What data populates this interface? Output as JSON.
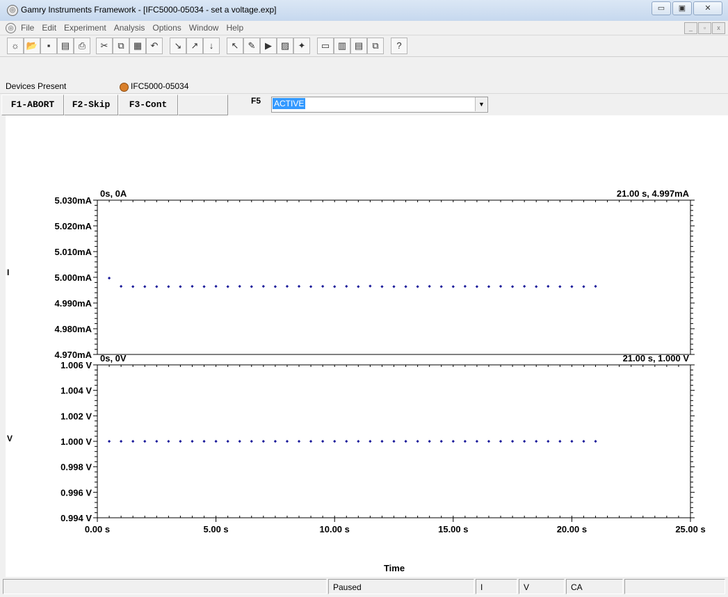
{
  "window": {
    "title": "Gamry Instruments Framework - [IFC5000-05034 - set a voltage.exp]",
    "app_icon": "gamry-logo-icon",
    "controls": [
      "minimize-icon",
      "maximize-icon",
      "close-icon"
    ]
  },
  "menu": {
    "items": [
      "File",
      "Edit",
      "Experiment",
      "Analysis",
      "Options",
      "Window",
      "Help"
    ]
  },
  "toolbar": {
    "icons": [
      "new-icon",
      "open-icon",
      "save-icon",
      "save-all-icon",
      "print-icon",
      "cut-icon",
      "copy-icon",
      "paste-icon",
      "undo-icon",
      "pointer-icon",
      "pointer-up-icon",
      "pointer-down-icon",
      "cursor-icon",
      "pen-icon",
      "run-icon",
      "chart-icon",
      "wand-icon",
      "stack-windows-icon",
      "tile-vertical-icon",
      "tile-horizontal-icon",
      "cascade-icon",
      "help-icon"
    ]
  },
  "devices": {
    "label": "Devices Present",
    "device": "IFC5000-05034",
    "status_color": "#d97f2a"
  },
  "fkeys": {
    "f1": "F1-ABORT",
    "f2": "F2-Skip",
    "f3": "F3-Cont",
    "f5_label": "F5",
    "f5_value": "ACTIVE"
  },
  "chart_data": [
    {
      "type": "scatter",
      "ylabel": "I",
      "corner_left": "0s, 0A",
      "corner_right": "21.00 s, 4.997mA",
      "ytick_labels": [
        "5.030mA",
        "5.020mA",
        "5.010mA",
        "5.000mA",
        "4.990mA",
        "4.980mA",
        "4.970mA"
      ],
      "ylim": [
        4.97,
        5.03
      ],
      "yunit": "mA",
      "xlim": [
        0,
        25
      ],
      "x": [
        0.5,
        1.0,
        1.5,
        2.0,
        2.5,
        3.0,
        3.5,
        4.0,
        4.5,
        5.0,
        5.5,
        6.0,
        6.5,
        7.0,
        7.5,
        8.0,
        8.5,
        9.0,
        9.5,
        10.0,
        10.5,
        11.0,
        11.5,
        12.0,
        12.5,
        13.0,
        13.5,
        14.0,
        14.5,
        15.0,
        15.5,
        16.0,
        16.5,
        17.0,
        17.5,
        18.0,
        18.5,
        19.0,
        19.5,
        20.0,
        20.5,
        21.0
      ],
      "y": [
        4.9997,
        4.9965,
        4.9964,
        4.9964,
        4.9964,
        4.9964,
        4.9964,
        4.9965,
        4.9964,
        4.9965,
        4.9964,
        4.9965,
        4.9964,
        4.9965,
        4.9964,
        4.9965,
        4.9965,
        4.9964,
        4.9965,
        4.9964,
        4.9965,
        4.9964,
        4.9966,
        4.9964,
        4.9964,
        4.9964,
        4.9964,
        4.9965,
        4.9964,
        4.9964,
        4.9965,
        4.9964,
        4.9964,
        4.9965,
        4.9964,
        4.9965,
        4.9964,
        4.9965,
        4.9964,
        4.9964,
        4.9964,
        4.9965
      ],
      "marker_color": "#1a1a9a"
    },
    {
      "type": "scatter",
      "ylabel": "V",
      "corner_left": "0s, 0V",
      "corner_right": "21.00 s, 1.000 V",
      "ytick_labels": [
        "1.006 V",
        "1.004 V",
        "1.002 V",
        "1.000 V",
        "0.998 V",
        "0.996 V",
        "0.994 V"
      ],
      "ylim": [
        0.994,
        1.006
      ],
      "yunit": "V",
      "xlim": [
        0,
        25
      ],
      "x": [
        0.5,
        1.0,
        1.5,
        2.0,
        2.5,
        3.0,
        3.5,
        4.0,
        4.5,
        5.0,
        5.5,
        6.0,
        6.5,
        7.0,
        7.5,
        8.0,
        8.5,
        9.0,
        9.5,
        10.0,
        10.5,
        11.0,
        11.5,
        12.0,
        12.5,
        13.0,
        13.5,
        14.0,
        14.5,
        15.0,
        15.5,
        16.0,
        16.5,
        17.0,
        17.5,
        18.0,
        18.5,
        19.0,
        19.5,
        20.0,
        20.5,
        21.0
      ],
      "y": [
        1.0,
        1.0,
        1.0,
        1.0,
        1.0,
        1.0,
        1.0,
        1.0,
        1.0,
        1.0,
        1.0,
        1.0,
        1.0,
        1.0,
        1.0,
        1.0,
        1.0,
        1.0,
        1.0,
        1.0,
        1.0,
        1.0,
        1.0,
        1.0,
        1.0,
        1.0,
        1.0,
        1.0,
        1.0,
        1.0,
        1.0,
        1.0,
        1.0,
        1.0,
        1.0,
        1.0,
        1.0,
        1.0,
        1.0,
        1.0,
        1.0,
        1.0
      ],
      "xtick_labels": [
        "0.00 s",
        "5.00 s",
        "10.00 s",
        "15.00 s",
        "20.00 s",
        "25.00 s"
      ],
      "xlabel": "Time",
      "marker_color": "#1a1a9a"
    }
  ],
  "status": {
    "state": "Paused",
    "i": "I",
    "v": "V",
    "mode": "CA"
  }
}
